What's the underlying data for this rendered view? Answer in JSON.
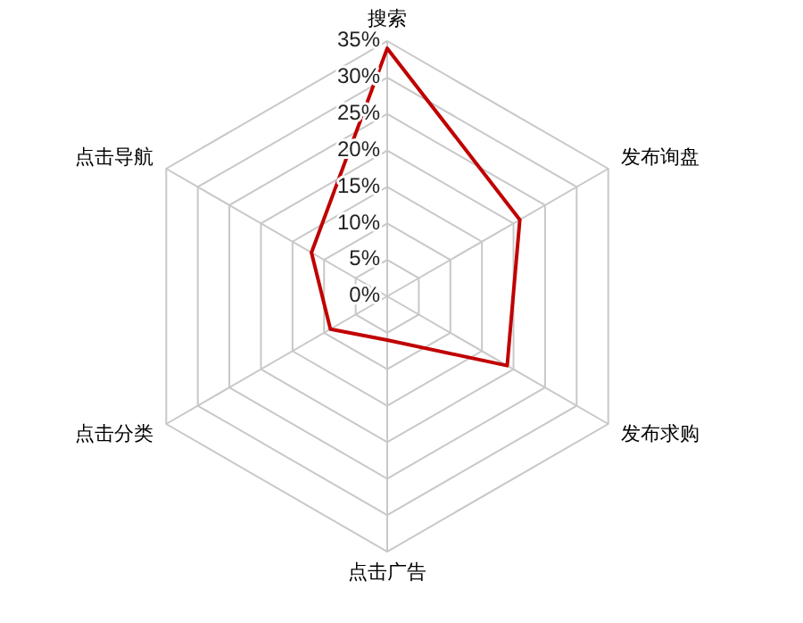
{
  "chart_data": {
    "type": "radar",
    "categories": [
      "搜索",
      "发布询盘",
      "发布求购",
      "点击广告",
      "点击分类",
      "点击导航"
    ],
    "series": [
      {
        "color": "#c00000",
        "values": [
          34,
          21,
          19,
          6,
          9,
          12
        ]
      }
    ],
    "ylim": [
      0,
      35
    ],
    "yticks": [
      {
        "value": 0,
        "label": "0%"
      },
      {
        "value": 5,
        "label": "5%"
      },
      {
        "value": 10,
        "label": "10%"
      },
      {
        "value": 15,
        "label": "15%"
      },
      {
        "value": 20,
        "label": "20%"
      },
      {
        "value": 25,
        "label": "25%"
      },
      {
        "value": 30,
        "label": "30%"
      },
      {
        "value": 35,
        "label": "35%"
      }
    ],
    "grid": true
  }
}
